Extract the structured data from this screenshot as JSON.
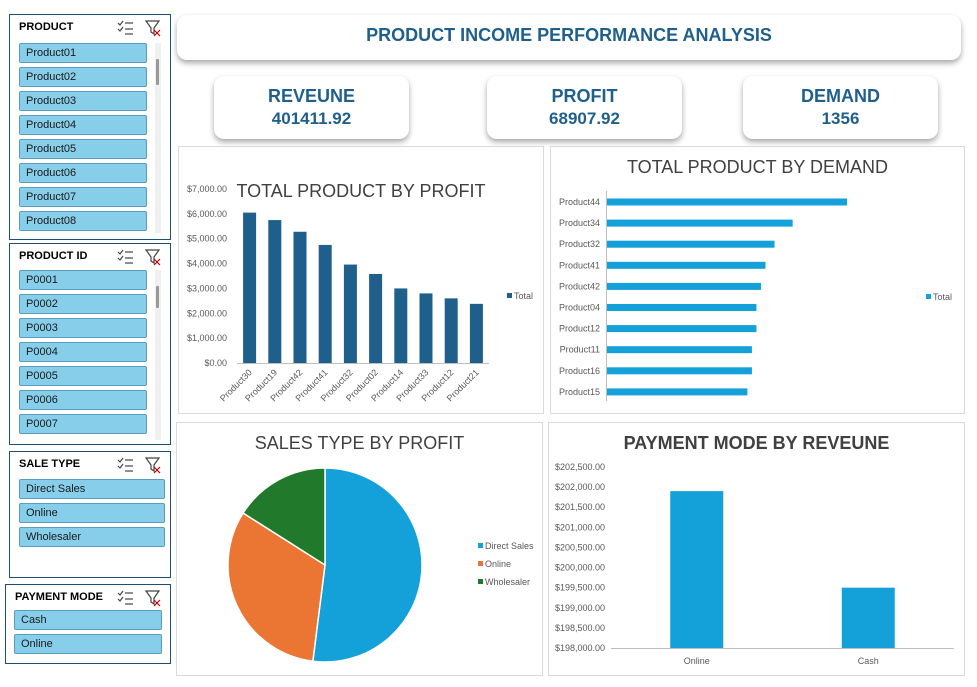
{
  "title": "PRODUCT INCOME PERFORMANCE ANALYSIS",
  "kpis": [
    {
      "label": "REVEUNE",
      "value": "401411.92"
    },
    {
      "label": "PROFIT",
      "value": "68907.92"
    },
    {
      "label": "DEMAND",
      "value": "1356"
    }
  ],
  "slicers": {
    "product": {
      "title": "PRODUCT",
      "items": [
        "Product01",
        "Product02",
        "Product03",
        "Product04",
        "Product05",
        "Product06",
        "Product07",
        "Product08"
      ]
    },
    "product_id": {
      "title": "PRODUCT ID",
      "items": [
        "P0001",
        "P0002",
        "P0003",
        "P0004",
        "P0005",
        "P0006",
        "P0007"
      ]
    },
    "sale_type": {
      "title": "SALE TYPE",
      "items": [
        "Direct Sales",
        "Online",
        "Wholesaler"
      ]
    },
    "payment_mode": {
      "title": "PAYMENT MODE",
      "items": [
        "Cash",
        "Online"
      ]
    }
  },
  "colors": {
    "dark_blue": "#1f5f8b",
    "light_blue": "#14a0d9",
    "orange": "#eb7533",
    "green": "#217a2b",
    "slicer_fill": "#87ceeb"
  },
  "chart_data": [
    {
      "type": "bar",
      "title": "TOTAL PRODUCT BY PROFIT",
      "categories": [
        "Product30",
        "Product19",
        "Product42",
        "Product41",
        "Product32",
        "Product02",
        "Product14",
        "Product33",
        "Product12",
        "Product21"
      ],
      "series": [
        {
          "name": "Total",
          "values": [
            6050,
            5750,
            5280,
            4750,
            3960,
            3580,
            3000,
            2800,
            2600,
            2380
          ]
        }
      ],
      "ylim": [
        0,
        7000
      ],
      "yticks": [
        "$0.00",
        "$1,000.00",
        "$2,000.00",
        "$3,000.00",
        "$4,000.00",
        "$5,000.00",
        "$6,000.00",
        "$7,000.00"
      ],
      "legend": "right"
    },
    {
      "type": "bar",
      "orientation": "horizontal",
      "title": "TOTAL PRODUCT BY DEMAND",
      "categories": [
        "Product44",
        "Product34",
        "Product32",
        "Product41",
        "Product42",
        "Product04",
        "Product12",
        "Product11",
        "Product16",
        "Product15"
      ],
      "series": [
        {
          "name": "Total",
          "values": [
            53,
            41,
            37,
            35,
            34,
            33,
            33,
            32,
            32,
            31
          ]
        }
      ],
      "legend": "right"
    },
    {
      "type": "pie",
      "title": "SALES TYPE BY PROFIT",
      "categories": [
        "Direct Sales",
        "Online",
        "Wholesaler"
      ],
      "values": [
        52,
        32,
        16
      ],
      "legend": "right"
    },
    {
      "type": "bar",
      "title": "PAYMENT MODE BY REVEUNE",
      "categories": [
        "Online",
        "Cash"
      ],
      "values": [
        201900,
        199500
      ],
      "ylim": [
        198000,
        202500
      ],
      "yticks": [
        "$198,000.00",
        "$198,500.00",
        "$199,000.00",
        "$199,500.00",
        "$200,000.00",
        "$200,500.00",
        "$201,000.00",
        "$201,500.00",
        "$202,000.00",
        "$202,500.00"
      ]
    }
  ]
}
